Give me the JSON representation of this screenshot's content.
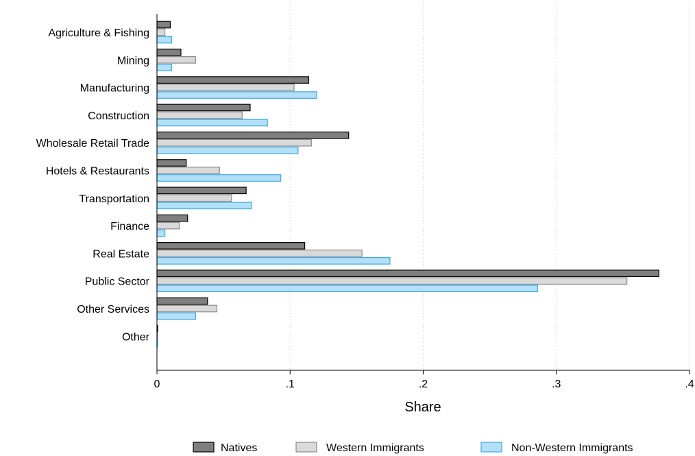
{
  "chart_data": {
    "type": "bar",
    "orientation": "horizontal",
    "categories": [
      "Agriculture & Fishing",
      "Mining",
      "Manufacturing",
      "Construction",
      "Wholesale Retail Trade",
      "Hotels & Restaurants",
      "Transportation",
      "Finance",
      "Real Estate",
      "Public Sector",
      "Other Services",
      "Other"
    ],
    "series": [
      {
        "name": "Natives",
        "color": "#7f7f7f",
        "stroke": "#000000",
        "values": [
          0.01,
          0.018,
          0.114,
          0.07,
          0.144,
          0.022,
          0.067,
          0.023,
          0.111,
          0.377,
          0.038,
          0.0005
        ]
      },
      {
        "name": "Western Immigrants",
        "color": "#d9d9d9",
        "stroke": "#8c8c8c",
        "values": [
          0.006,
          0.029,
          0.103,
          0.064,
          0.116,
          0.047,
          0.056,
          0.017,
          0.154,
          0.353,
          0.045,
          0.0005
        ]
      },
      {
        "name": "Non-Western Immigrants",
        "color": "#b3e0f7",
        "stroke": "#3da8e0",
        "values": [
          0.011,
          0.011,
          0.12,
          0.083,
          0.106,
          0.093,
          0.071,
          0.006,
          0.175,
          0.286,
          0.029,
          0.0005
        ]
      }
    ],
    "xlabel": "Share",
    "ylabel": "",
    "xlim": [
      0,
      0.4
    ],
    "xticks": [
      0,
      0.1,
      0.2,
      0.3,
      0.4
    ],
    "xtick_labels": [
      "0",
      ".1",
      ".2",
      ".3",
      ".4"
    ],
    "grid": "vertical-dotted",
    "legend_position": "bottom"
  }
}
